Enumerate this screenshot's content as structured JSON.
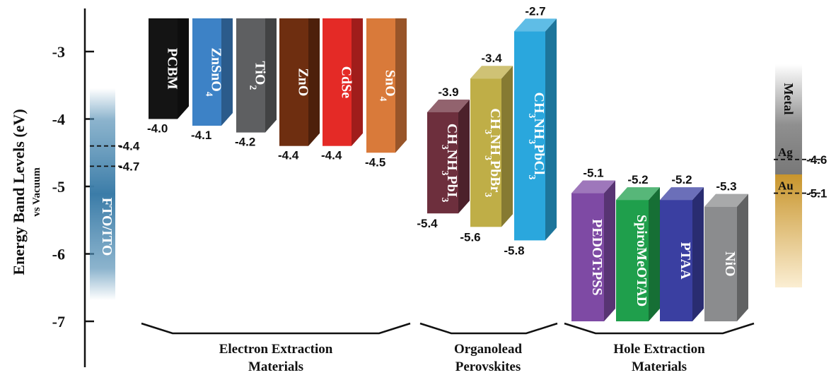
{
  "chart_data": {
    "type": "bar",
    "ylabel": "Energy Band Levels (eV)",
    "ylabel_sub": "vs Vacuum",
    "ylim": [
      -7.6,
      -2.3
    ],
    "yticks": [
      "-3",
      "-4",
      "-5",
      "-6",
      "-7"
    ],
    "electrode": {
      "label": "FTO/ITO",
      "levels": [
        {
          "value": -4.4,
          "label": "-4.4"
        },
        {
          "value": -4.7,
          "label": "-4.7"
        }
      ]
    },
    "groups": [
      {
        "label": "Electron Extraction Materials",
        "label_lines": [
          "Electron Extraction",
          "Materials"
        ],
        "materials": [
          {
            "name": "PCBM",
            "top": -2.5,
            "bottom": -4.0,
            "value_label": "-4.0",
            "color": "#141414"
          },
          {
            "name": "ZnSnO",
            "sub": "4",
            "top": -2.5,
            "bottom": -4.1,
            "value_label": "-4.1",
            "color": "#3d82c6"
          },
          {
            "name": "TiO",
            "sub": "2",
            "top": -2.5,
            "bottom": -4.2,
            "value_label": "-4.2",
            "color": "#5e5f61"
          },
          {
            "name": "ZnO",
            "top": -2.5,
            "bottom": -4.4,
            "value_label": "-4.4",
            "color": "#6e2e10"
          },
          {
            "name": "CdSe",
            "top": -2.5,
            "bottom": -4.4,
            "value_label": "-4.4",
            "color": "#e42a26"
          },
          {
            "name": "SnO",
            "sub": "4",
            "top": -2.5,
            "bottom": -4.5,
            "value_label": "-4.5",
            "color": "#d97a3a"
          }
        ]
      },
      {
        "label": "Organolead Perovskites",
        "label_lines": [
          "Organolead",
          "Perovskites"
        ],
        "materials": [
          {
            "name": "CH3NH3PbI3",
            "parts": [
              [
                "CH",
                ""
              ],
              [
                "3",
                "s"
              ],
              [
                "NH",
                ""
              ],
              [
                "3",
                "s"
              ],
              [
                "PbI",
                ""
              ],
              [
                "3",
                "s"
              ]
            ],
            "top": -3.9,
            "bottom": -5.4,
            "top_label": "-3.9",
            "bottom_label": "-5.4",
            "color": "#6d2f3d"
          },
          {
            "name": "CH3NH3PbBr3",
            "parts": [
              [
                "CH",
                ""
              ],
              [
                "3",
                "s"
              ],
              [
                "NH",
                ""
              ],
              [
                "3",
                "s"
              ],
              [
                "PbBr",
                ""
              ],
              [
                "3",
                "s"
              ]
            ],
            "top": -3.4,
            "bottom": -5.6,
            "top_label": "-3.4",
            "bottom_label": "-5.6",
            "color": "#bfae47"
          },
          {
            "name": "CH3NH3PbCl3",
            "parts": [
              [
                "CH",
                ""
              ],
              [
                "3",
                "s"
              ],
              [
                "NH",
                ""
              ],
              [
                "3",
                "s"
              ],
              [
                "PbCl",
                ""
              ],
              [
                "3",
                "s"
              ]
            ],
            "top": -2.7,
            "bottom": -5.8,
            "top_label": "-2.7",
            "bottom_label": "-5.8",
            "color": "#2aa7dd"
          }
        ]
      },
      {
        "label": "Hole Extraction Materials",
        "label_lines": [
          "Hole Extraction",
          "Materials"
        ],
        "materials": [
          {
            "name": "PEDOT:PSS",
            "top": -5.1,
            "bottom": -7.0,
            "value_label": "-5.1",
            "color": "#7e4aa4"
          },
          {
            "name": "SpiroMeOTAD",
            "top": -5.2,
            "bottom": -7.0,
            "value_label": "-5.2",
            "color": "#1f9f4c"
          },
          {
            "name": "PTAA",
            "top": -5.2,
            "bottom": -7.0,
            "value_label": "-5.2",
            "color": "#3a3fa1"
          },
          {
            "name": "NiO",
            "top": -5.3,
            "bottom": -7.0,
            "value_label": "-5.3",
            "color": "#8b8c8e"
          }
        ]
      }
    ],
    "metal": {
      "label": "Metal",
      "levels": [
        {
          "name": "Ag",
          "value": -4.6,
          "label": "-4.6"
        },
        {
          "name": "Au",
          "value": -5.1,
          "label": "-5.1"
        }
      ]
    }
  }
}
